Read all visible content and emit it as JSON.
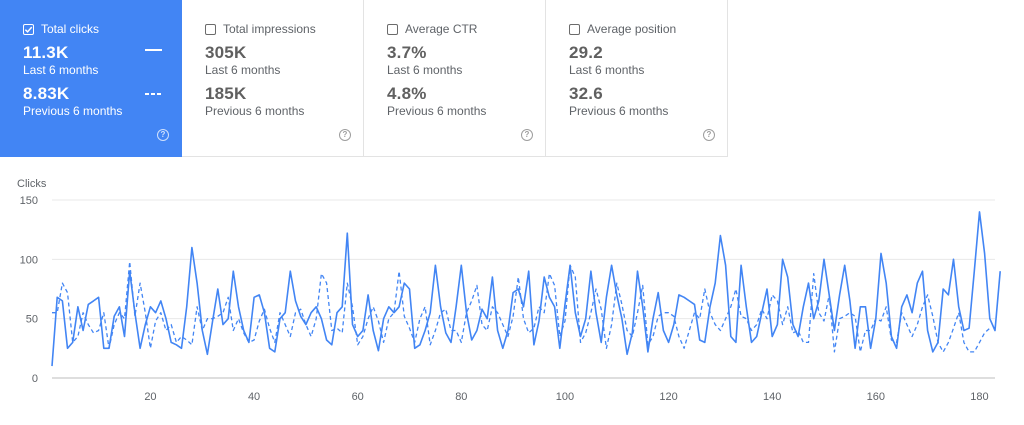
{
  "metrics": [
    {
      "label": "Total clicks",
      "value": "11.3K",
      "value_caption": "Last 6 months",
      "prev_value": "8.83K",
      "prev_caption": "Previous 6 months",
      "checked": true,
      "help_icon": "help-circle-icon"
    },
    {
      "label": "Total impressions",
      "value": "305K",
      "value_caption": "Last 6 months",
      "prev_value": "185K",
      "prev_caption": "Previous 6 months",
      "checked": false,
      "help_icon": "help-circle-icon"
    },
    {
      "label": "Average CTR",
      "value": "3.7%",
      "value_caption": "Last 6 months",
      "prev_value": "4.8%",
      "prev_caption": "Previous 6 months",
      "checked": false,
      "help_icon": "help-circle-icon"
    },
    {
      "label": "Average position",
      "value": "29.2",
      "value_caption": "Last 6 months",
      "prev_value": "32.6",
      "prev_caption": "Previous 6 months",
      "checked": false,
      "help_icon": "help-circle-icon"
    }
  ],
  "colors": {
    "accent": "#4285f4",
    "line": "#4285f4",
    "grid": "#e8e8e8"
  },
  "chart_data": {
    "type": "line",
    "ylabel": "Clicks",
    "ylim": [
      0,
      150
    ],
    "xlim": [
      1,
      183
    ],
    "yticks": [
      0,
      50,
      100,
      150
    ],
    "xticks": [
      20,
      40,
      60,
      80,
      100,
      120,
      140,
      160,
      180
    ],
    "grid": true,
    "series": [
      {
        "style": "solid",
        "values": [
          10,
          68,
          65,
          25,
          30,
          60,
          40,
          62,
          65,
          68,
          25,
          25,
          52,
          60,
          35,
          90,
          55,
          25,
          45,
          60,
          55,
          65,
          50,
          30,
          28,
          25,
          60,
          110,
          80,
          40,
          20,
          48,
          75,
          45,
          50,
          90,
          60,
          40,
          30,
          68,
          70,
          55,
          25,
          22,
          50,
          55,
          90,
          65,
          52,
          45,
          55,
          60,
          50,
          32,
          28,
          55,
          60,
          122,
          45,
          35,
          40,
          70,
          40,
          23,
          50,
          60,
          55,
          60,
          80,
          75,
          25,
          28,
          40,
          55,
          95,
          60,
          38,
          30,
          60,
          95,
          55,
          32,
          40,
          58,
          50,
          85,
          40,
          25,
          40,
          72,
          75,
          60,
          90,
          28,
          48,
          85,
          68,
          60,
          25,
          62,
          95,
          55,
          35,
          50,
          90,
          55,
          30,
          68,
          95,
          70,
          50,
          20,
          38,
          90,
          60,
          22,
          50,
          72,
          40,
          30,
          45,
          70,
          68,
          65,
          62,
          32,
          30,
          60,
          80,
          120,
          95,
          35,
          30,
          95,
          60,
          30,
          35,
          55,
          75,
          35,
          45,
          100,
          85,
          45,
          35,
          60,
          80,
          50,
          65,
          100,
          70,
          40,
          70,
          95,
          65,
          25,
          60,
          60,
          25,
          50,
          105,
          80,
          35,
          25,
          60,
          70,
          55,
          80,
          90,
          40,
          22,
          30,
          75,
          70,
          100,
          60,
          40,
          42,
          90,
          140,
          105,
          50,
          40,
          90
        ]
      },
      {
        "style": "dashed",
        "values": [
          55,
          55,
          80,
          72,
          30,
          35,
          55,
          45,
          38,
          40,
          55,
          25,
          45,
          55,
          50,
          98,
          52,
          80,
          55,
          25,
          48,
          55,
          40,
          45,
          30,
          35,
          32,
          28,
          60,
          40,
          50,
          50,
          52,
          55,
          68,
          40,
          50,
          38,
          30,
          32,
          48,
          58,
          42,
          30,
          55,
          45,
          35,
          55,
          58,
          45,
          35,
          50,
          88,
          80,
          40,
          42,
          38,
          80,
          60,
          28,
          35,
          50,
          60,
          48,
          30,
          50,
          55,
          90,
          52,
          42,
          30,
          50,
          60,
          28,
          40,
          55,
          58,
          40,
          40,
          30,
          55,
          65,
          78,
          45,
          40,
          60,
          55,
          45,
          35,
          52,
          85,
          50,
          38,
          42,
          60,
          55,
          88,
          78,
          35,
          48,
          95,
          85,
          30,
          38,
          55,
          75,
          58,
          25,
          45,
          80,
          62,
          40,
          35,
          55,
          78,
          28,
          35,
          52,
          55,
          55,
          52,
          35,
          25,
          40,
          55,
          50,
          75,
          55,
          45,
          40,
          50,
          60,
          75,
          52,
          50,
          40,
          45,
          58,
          50,
          70,
          65,
          45,
          60,
          38,
          40,
          30,
          30,
          88,
          55,
          48,
          70,
          22,
          50,
          52,
          55,
          52,
          22,
          40,
          40,
          50,
          48,
          60,
          32,
          30,
          55,
          45,
          35,
          45,
          60,
          70,
          52,
          30,
          22,
          30,
          42,
          55,
          30,
          22,
          22,
          30,
          38,
          42
        ]
      }
    ]
  }
}
